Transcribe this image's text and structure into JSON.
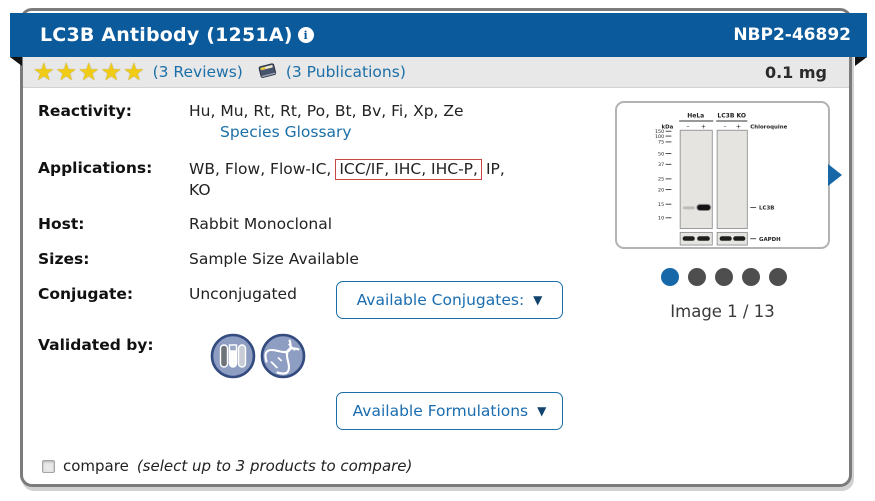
{
  "header": {
    "title": "LC3B Antibody (1251A)",
    "info_icon": "i",
    "sku": "NBP2-46892"
  },
  "rating": {
    "stars_count": 5,
    "star_glyph": "★",
    "reviews_label": "(3 Reviews)",
    "publications_label": "(3 Publications)",
    "size": "0.1 mg"
  },
  "fields": {
    "reactivity_label": "Reactivity:",
    "reactivity_value": "Hu, Mu, Rt, Rt, Po, Bt, Bv, Fi, Xp, Ze",
    "species_glossary": "Species Glossary",
    "applications_label": "Applications:",
    "applications_pre": "WB, Flow, Flow-IC,",
    "applications_highlight": "ICC/IF, IHC, IHC-P,",
    "applications_post": "IP,",
    "applications_line2": "KO",
    "host_label": "Host:",
    "host_value": "Rabbit Monoclonal",
    "sizes_label": "Sizes:",
    "sizes_value": "Sample Size Available",
    "conjugate_label": "Conjugate:",
    "conjugate_value": "Unconjugated",
    "validated_label": "Validated by:"
  },
  "buttons": {
    "conjugates": "Available Conjugates:",
    "formulations": "Available Formulations",
    "caret": "▼"
  },
  "carousel": {
    "dots_total": 5,
    "active_dot": 0,
    "caption": "Image 1 / 13"
  },
  "blot": {
    "group1": "HeLa",
    "group2": "LC3B KO",
    "kda": "kDa",
    "minus": "–",
    "plus": "+",
    "treatment": "Chloroquine",
    "ladder": [
      "150",
      "100",
      "75",
      "50",
      "37",
      "25",
      "20",
      "15",
      "10"
    ],
    "band_target": "LC3B",
    "band_control": "GAPDH"
  },
  "compare": {
    "label": "compare",
    "note": "(select up to 3 products to compare)"
  },
  "colors": {
    "header_blue": "#0b5a9c",
    "link_blue": "#1b6fa8",
    "highlight_red": "#cc4343",
    "star_gold": "#f1cc17",
    "dot_active": "#1768a9",
    "dot_inactive": "#4e4e4e"
  }
}
